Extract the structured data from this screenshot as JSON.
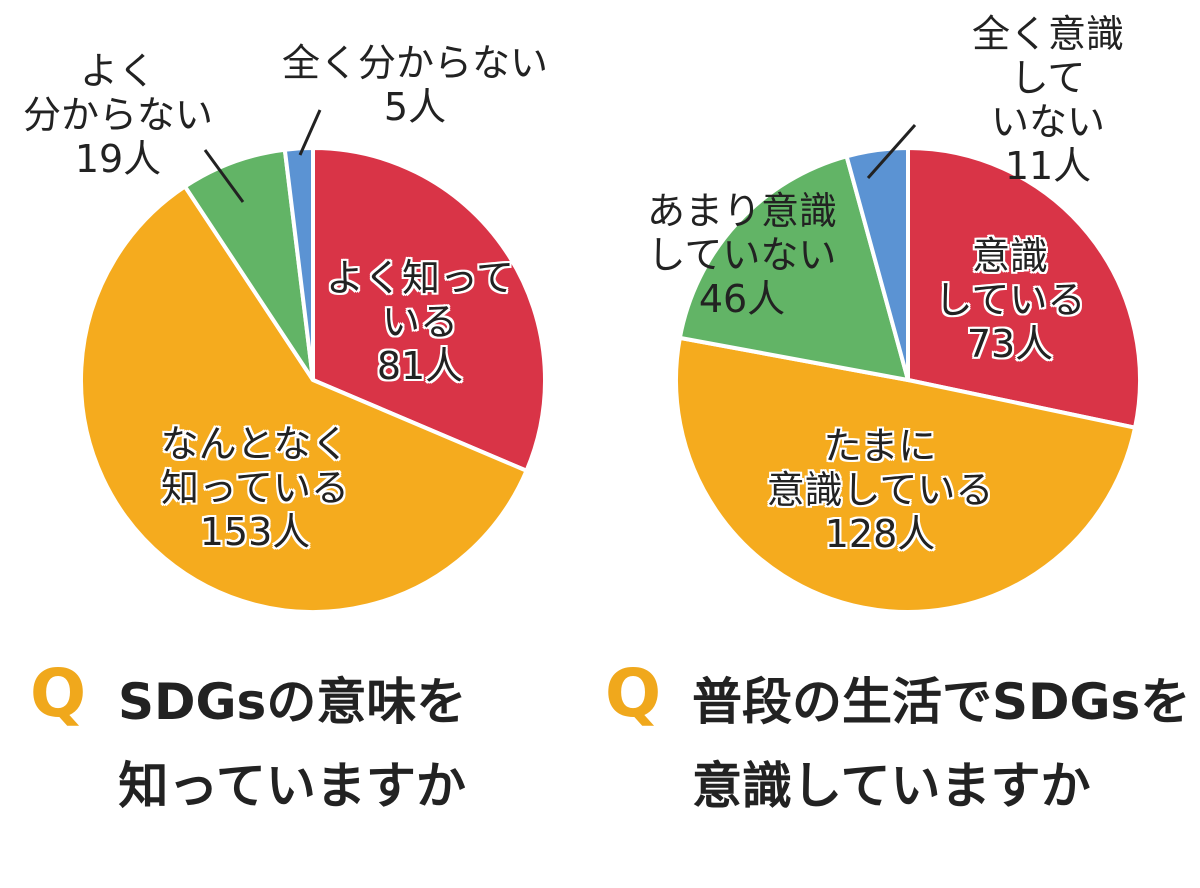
{
  "chart_data": [
    {
      "type": "pie",
      "marker": "Q",
      "title": "SDGsの意味を\n知っていますか",
      "categories": [
        "よく知って\nいる",
        "なんとなく\n知っている",
        "よく\n分からない",
        "全く分からない"
      ],
      "values": [
        81,
        153,
        19,
        5
      ],
      "value_labels": [
        "81人",
        "153人",
        "19人",
        "5人"
      ],
      "colors": [
        "#d93447",
        "#f5ab1e",
        "#62b466",
        "#5b93d3"
      ]
    },
    {
      "type": "pie",
      "marker": "Q",
      "title": "普段の生活でSDGsを\n意識していますか",
      "categories": [
        "意識\nしている",
        "たまに\n意識している",
        "あまり意識\nしていない",
        "全く意識して\nいない"
      ],
      "values": [
        73,
        128,
        46,
        11
      ],
      "value_labels": [
        "73人",
        "128人",
        "46人",
        "11人"
      ],
      "colors": [
        "#d93447",
        "#f5ab1e",
        "#62b466",
        "#5b93d3"
      ]
    }
  ]
}
